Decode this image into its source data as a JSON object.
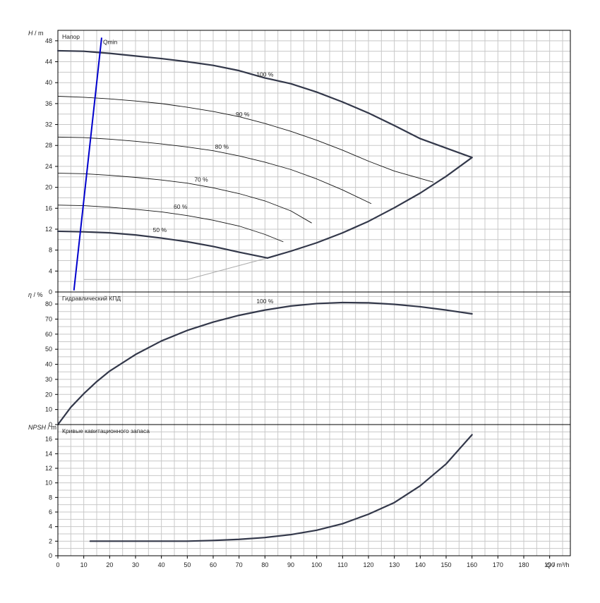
{
  "colors": {
    "background": "#ffffff",
    "grid": "#c8c8c8",
    "frame": "#000000",
    "curve": "#33384a",
    "thin_curve": "#111111",
    "qmin": "#0000cc",
    "aux": "#aaaaaa"
  },
  "chart_data": [
    {
      "type": "line",
      "title": "Напор",
      "ylabel_name": "H",
      "ylabel_unit": "m",
      "xlim": [
        0,
        198
      ],
      "ylim": [
        0,
        50
      ],
      "yticks": [
        0,
        4,
        8,
        12,
        16,
        20,
        24,
        28,
        32,
        36,
        40,
        44,
        48
      ],
      "grid": true,
      "series": [
        {
          "name": "100 %",
          "bold": true,
          "label_at": [
            80,
            40.9
          ],
          "x": [
            0,
            10,
            20,
            30,
            40,
            50,
            60,
            70,
            80,
            90,
            100,
            110,
            120,
            130,
            140,
            150,
            160
          ],
          "y": [
            46.1,
            46.0,
            45.6,
            45.1,
            44.6,
            44.0,
            43.3,
            42.3,
            40.9,
            39.8,
            38.2,
            36.3,
            34.2,
            31.8,
            29.3,
            27.5,
            25.7
          ]
        },
        {
          "name": "90 %",
          "bold": false,
          "label_at": [
            72,
            33.3
          ],
          "x": [
            0,
            10,
            20,
            30,
            40,
            50,
            60,
            70,
            80,
            90,
            100,
            110,
            120,
            130,
            145
          ],
          "y": [
            37.4,
            37.2,
            36.9,
            36.5,
            36.0,
            35.3,
            34.5,
            33.5,
            32.2,
            30.7,
            29.0,
            27.1,
            25.0,
            23.1,
            21.0
          ]
        },
        {
          "name": "80 %",
          "bold": false,
          "label_at": [
            64,
            27.1
          ],
          "x": [
            0,
            10,
            20,
            30,
            40,
            50,
            60,
            70,
            80,
            90,
            100,
            110,
            121
          ],
          "y": [
            29.6,
            29.5,
            29.2,
            28.8,
            28.3,
            27.7,
            27.0,
            26.0,
            24.8,
            23.4,
            21.6,
            19.5,
            16.9
          ]
        },
        {
          "name": "70 %",
          "bold": false,
          "label_at": [
            56,
            20.8
          ],
          "x": [
            0,
            10,
            20,
            30,
            40,
            50,
            60,
            70,
            80,
            90,
            98
          ],
          "y": [
            22.7,
            22.6,
            22.3,
            21.9,
            21.4,
            20.8,
            19.9,
            18.8,
            17.4,
            15.5,
            13.2
          ]
        },
        {
          "name": "60 %",
          "bold": false,
          "label_at": [
            48,
            15.6
          ],
          "x": [
            0,
            10,
            20,
            30,
            40,
            50,
            60,
            70,
            80,
            87
          ],
          "y": [
            16.6,
            16.5,
            16.2,
            15.8,
            15.3,
            14.6,
            13.7,
            12.6,
            11.0,
            9.6
          ]
        },
        {
          "name": "50 %",
          "bold": true,
          "label_at": [
            40,
            11.2
          ],
          "x": [
            0,
            10,
            20,
            30,
            40,
            50,
            60,
            70,
            81
          ],
          "y": [
            11.6,
            11.5,
            11.3,
            10.9,
            10.3,
            9.6,
            8.7,
            7.6,
            6.5
          ]
        },
        {
          "name": "",
          "bold": true,
          "x": [
            81,
            90,
            100,
            110,
            120,
            130,
            140,
            150,
            160
          ],
          "y": [
            6.5,
            7.8,
            9.4,
            11.3,
            13.5,
            16.1,
            18.9,
            22.1,
            25.7
          ]
        }
      ],
      "aux_line": {
        "x": [
          10,
          50,
          81
        ],
        "y": [
          2.4,
          2.4,
          6.5
        ]
      },
      "qmin": {
        "name": "Qmin",
        "x": [
          6.2,
          16.9
        ],
        "y": [
          0.3,
          48.6
        ]
      }
    },
    {
      "type": "line",
      "title": "Гидравлический КПД",
      "ylabel_name": "η",
      "ylabel_unit": "%",
      "xlim": [
        0,
        198
      ],
      "ylim": [
        0,
        88
      ],
      "yticks": [
        0,
        10,
        20,
        30,
        40,
        50,
        60,
        70,
        80
      ],
      "grid": true,
      "series": [
        {
          "name": "100 %",
          "bold": true,
          "label_at": [
            80,
            79.5
          ],
          "x": [
            0,
            5,
            10,
            15,
            20,
            30,
            40,
            50,
            60,
            70,
            80,
            90,
            100,
            110,
            120,
            130,
            140,
            150,
            160
          ],
          "y": [
            0,
            11.5,
            20.5,
            28.5,
            35.5,
            46.5,
            55.5,
            62.5,
            68,
            72.5,
            76,
            78.7,
            80.3,
            81,
            80.8,
            79.8,
            78.2,
            76,
            73.5
          ]
        }
      ]
    },
    {
      "type": "line",
      "title": "Кривые кавитационного запаса",
      "ylabel_name": "NPSH",
      "ylabel_unit": "m",
      "xlabel_name": "Q",
      "xlabel_unit": "m³/h",
      "xlim": [
        0,
        198
      ],
      "ylim": [
        0,
        18
      ],
      "yticks": [
        0,
        2,
        4,
        6,
        8,
        10,
        12,
        14,
        16
      ],
      "xticks": [
        0,
        10,
        20,
        30,
        40,
        50,
        60,
        70,
        80,
        90,
        100,
        110,
        120,
        130,
        140,
        150,
        160,
        170,
        180,
        190
      ],
      "grid": true,
      "series": [
        {
          "name": "",
          "bold": true,
          "x": [
            12.5,
            20,
            30,
            40,
            50,
            60,
            70,
            80,
            90,
            100,
            110,
            120,
            130,
            140,
            150,
            160
          ],
          "y": [
            2.0,
            2.0,
            2.0,
            2.0,
            2.0,
            2.1,
            2.25,
            2.5,
            2.9,
            3.5,
            4.4,
            5.7,
            7.3,
            9.6,
            12.6,
            16.6
          ]
        }
      ]
    }
  ]
}
